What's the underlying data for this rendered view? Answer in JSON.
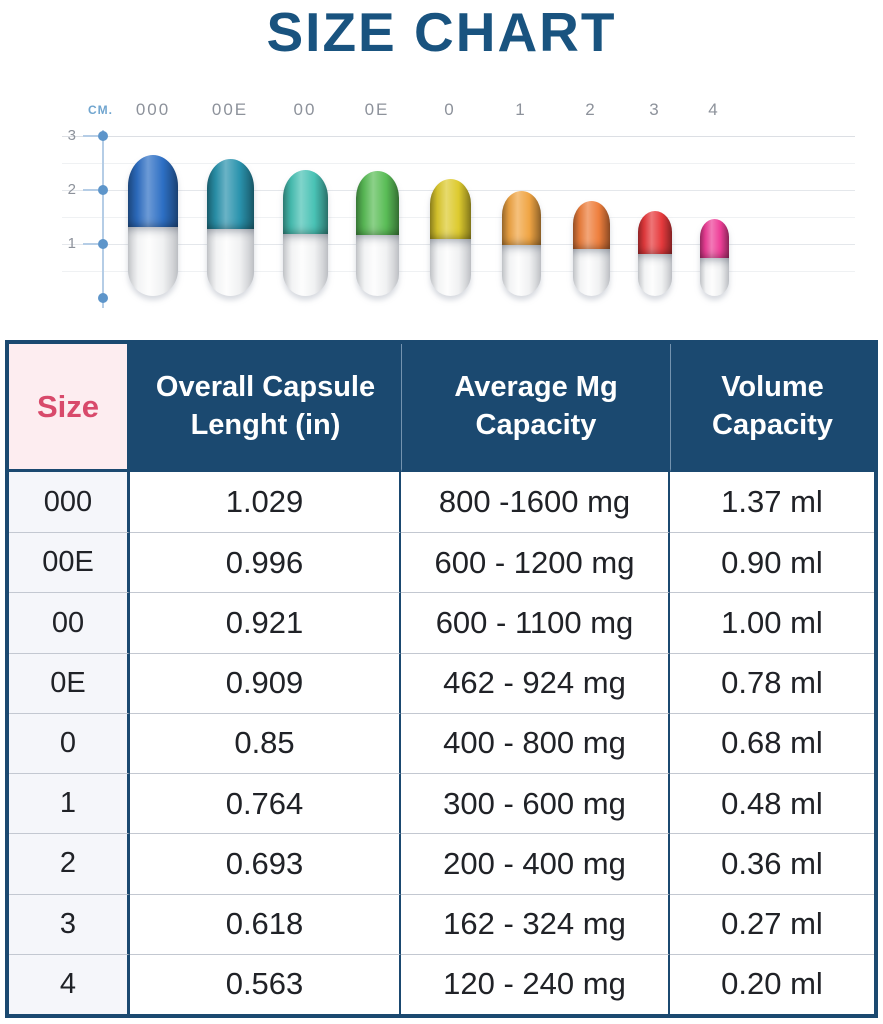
{
  "title": "SIZE CHART",
  "chart_data": {
    "type": "bar",
    "title": "SIZE CHART",
    "ylabel": "CM.",
    "yticks": [
      "3",
      "2",
      "1"
    ],
    "ylim": [
      0,
      3
    ],
    "grid": true,
    "legend": false,
    "categories": [
      "000",
      "00E",
      "00",
      "0E",
      "0",
      "1",
      "2",
      "3",
      "4"
    ],
    "values_cm": [
      2.61,
      2.53,
      2.34,
      2.31,
      2.16,
      1.94,
      1.76,
      1.57,
      1.43
    ],
    "lengths_in": [
      1.029,
      0.996,
      0.921,
      0.909,
      0.85,
      0.764,
      0.693,
      0.618,
      0.563
    ],
    "cap_colors": [
      "#2d6fc4",
      "#2a93ad",
      "#49c2b5",
      "#5abd57",
      "#ddca2e",
      "#f0a544",
      "#ee7f3d",
      "#e63a3d",
      "#ee3f98"
    ],
    "body_color": "#f2f2f3"
  },
  "table": {
    "headers": [
      "Size",
      "Overall Capsule Lenght (in)",
      "Average Mg Capacity",
      "Volume Capacity"
    ],
    "rows": [
      [
        "000",
        "1.029",
        "800 -1600 mg",
        "1.37 ml"
      ],
      [
        "00E",
        "0.996",
        "600 - 1200 mg",
        "0.90 ml"
      ],
      [
        "00",
        "0.921",
        "600 - 1100 mg",
        "1.00 ml"
      ],
      [
        "0E",
        "0.909",
        "462 - 924 mg",
        "0.78 ml"
      ],
      [
        "0",
        "0.85",
        "400 - 800 mg",
        "0.68 ml"
      ],
      [
        "1",
        "0.764",
        "300 - 600 mg",
        "0.48 ml"
      ],
      [
        "2",
        "0.693",
        "200 - 400 mg",
        "0.36 ml"
      ],
      [
        "3",
        "0.618",
        "162 - 324 mg",
        "0.27 ml"
      ],
      [
        "4",
        "0.563",
        "120 - 240 mg",
        "0.20 ml"
      ]
    ]
  },
  "colors": {
    "title": "#19537f",
    "header_bg": "#1b4970",
    "header_text": "#ffffff",
    "size_header_bg": "#fdedf0",
    "size_header_text": "#d84a6b",
    "size_col_bg": "#f5f6fa",
    "border": "#1b4970",
    "row_divider": "#c3c8d1",
    "axis": "#b5cde6",
    "axis_dot": "#5d95ca",
    "tick_text": "#8d929b",
    "cm_label": "#70a5cf",
    "gridline": "#e4e7eb"
  }
}
